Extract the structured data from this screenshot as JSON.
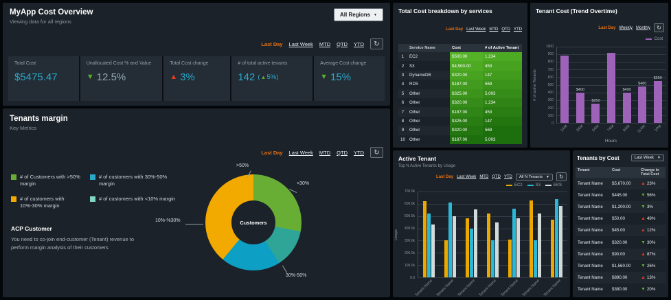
{
  "colors": {
    "teal": "#2aa8c9",
    "muted": "#93a9b3",
    "green": "#55b02a",
    "red": "#df3a1e",
    "orange": "#ec7211",
    "purple": "#9d63b8",
    "table_green_bright": "#54b226",
    "table_green_dark": "#1d6e0d",
    "bar_yellow": "#eaa800",
    "bar_teal": "#2bb7d6",
    "bar_gray": "#d3dada"
  },
  "overview": {
    "title": "MyApp Cost Overview",
    "subtitle": "Viewing data for all regions",
    "region_dropdown": "All Regions",
    "filters": [
      "Last Day",
      "Last Week",
      "MTD",
      "QTD",
      "YTD"
    ],
    "kpis": [
      {
        "label": "Total Cost",
        "value": "$5475.47"
      },
      {
        "label": "Unallocated Cost % and Value",
        "arrow": "down",
        "arrow_color": "green",
        "value": "12.5%"
      },
      {
        "label": "Total Cost change",
        "arrow": "up",
        "arrow_color": "red",
        "value": "3%"
      },
      {
        "label": "# of total active tenants",
        "value": "142",
        "change_pre": "(",
        "change_arrow": "up",
        "change_post": "5%)"
      },
      {
        "label": "Average Cost change",
        "arrow": "down",
        "arrow_color": "green",
        "value": "15%"
      }
    ]
  },
  "margin": {
    "title": "Tenants margin",
    "subtitle": "Key Metrics",
    "filters": [
      "Last Day",
      "Last Week",
      "MTD",
      "QTD",
      "YTD"
    ],
    "legend": [
      {
        "color": "#69ae34",
        "label": "# of Customers with >50% margin"
      },
      {
        "color": "#2aa8c9",
        "label": "# of customers with 30%-50% margin"
      },
      {
        "color": "#f2a900",
        "label": "# of customers with 10%-30% margin"
      },
      {
        "color": "#7fd6c2",
        "label": "# of customers with <10% margin"
      }
    ],
    "acp_title": "ACP Customer",
    "acp_text": "You need to co-join end-customer (Tenant) revenue to perform margin analysis of their customers",
    "chart_data": {
      "type": "pie",
      "center_label": "Customers",
      "segments": [
        {
          "label": ">50%",
          "value": 28,
          "color": "#69ae34"
        },
        {
          "label": "<30%",
          "value": 13,
          "color": "#2ea597"
        },
        {
          "label": "30%-50%",
          "value": 20,
          "color": "#0e9fc4"
        },
        {
          "label": "10%-%30%",
          "value": 39,
          "color": "#f2a900"
        }
      ]
    }
  },
  "breakdown": {
    "title": "Total Cost breakdown by services",
    "filters": [
      "Last Day",
      "Last Week",
      "MTD",
      "QTD",
      "YTD"
    ],
    "chart_data": {
      "type": "table",
      "columns": [
        "Service Name",
        "Cost",
        "# of Active Tenant"
      ],
      "rows": [
        {
          "rank": "1",
          "service": "EC2",
          "cost": "$500.00",
          "tenants": "1,234"
        },
        {
          "rank": "2",
          "service": "S3",
          "cost": "$4,500.00",
          "tenants": "453"
        },
        {
          "rank": "3",
          "service": "DynamoDB",
          "cost": "$320.00",
          "tenants": "147"
        },
        {
          "rank": "4",
          "service": "RDS",
          "cost": "$187.00",
          "tenants": "569"
        },
        {
          "rank": "5",
          "service": "Other",
          "cost": "$325.00",
          "tenants": "5,003"
        },
        {
          "rank": "6",
          "service": "Other",
          "cost": "$320.00",
          "tenants": "1,234"
        },
        {
          "rank": "7",
          "service": "Other",
          "cost": "$187.00",
          "tenants": "453"
        },
        {
          "rank": "8",
          "service": "Other",
          "cost": "$325.00",
          "tenants": "147"
        },
        {
          "rank": "9",
          "service": "Other",
          "cost": "$320.00",
          "tenants": "569"
        },
        {
          "rank": "10",
          "service": "Other",
          "cost": "$187.00",
          "tenants": "5,003"
        }
      ]
    }
  },
  "trend": {
    "title": "Tenant Cost (Trend Overtime)",
    "filters": [
      "Last Day",
      "Weekly",
      "Monthly"
    ],
    "legend_label": "Cost",
    "chart_data": {
      "type": "bar",
      "ylabel": "# of active Tenants",
      "xlabel": "Hours",
      "ylim": [
        0,
        1000
      ],
      "bar_color": "#9d63b8",
      "yticks": [
        {
          "t": "1000",
          "v": 1000
        },
        {
          "t": "900",
          "v": 900
        },
        {
          "t": "800",
          "v": 800
        },
        {
          "t": "700",
          "v": 700
        },
        {
          "t": "600",
          "v": 600
        },
        {
          "t": "500",
          "v": 500
        },
        {
          "t": "400",
          "v": 400
        },
        {
          "t": "300",
          "v": 300
        },
        {
          "t": "200",
          "v": 200
        },
        {
          "t": "100",
          "v": 100
        },
        {
          "t": "0",
          "v": 0
        }
      ],
      "categories": [
        "1AM",
        "3AM",
        "5AM",
        "7AM",
        "9AM",
        "11AM",
        "1PM"
      ],
      "values": [
        880,
        400,
        250,
        920,
        400,
        480,
        550
      ],
      "bar_labels": [
        "",
        "$400",
        "$250",
        "",
        "$400",
        "$480",
        "$550"
      ]
    }
  },
  "active": {
    "title": "Active Tenant",
    "subtitle": "Top N Active Tenants by Usage",
    "filters": [
      "Last Day",
      "Last Week",
      "MTD",
      "QTD",
      "YTD"
    ],
    "dropdown": "All N Tenants",
    "chart_data": {
      "type": "bar",
      "ylabel": "Usage",
      "xlabel": "",
      "ylim": [
        0,
        700
      ],
      "unit": "k",
      "yticks": [
        {
          "t": "700.0k",
          "v": 700
        },
        {
          "t": "600.0k",
          "v": 600
        },
        {
          "t": "500.0k",
          "v": 500
        },
        {
          "t": "400.0k",
          "v": 400
        },
        {
          "t": "300.0k",
          "v": 300
        },
        {
          "t": "200.0k",
          "v": 200
        },
        {
          "t": "100.0k",
          "v": 100
        },
        {
          "t": "0.0",
          "v": 0
        }
      ],
      "categories": [
        "Tenant Name",
        "Tenant Name",
        "Tenant Name",
        "Tenant Name",
        "Tenant Name",
        "Tenant Name",
        "Tenant Name"
      ],
      "series": [
        {
          "name": "EC2",
          "color": "#eaa800",
          "values": [
            620,
            300,
            480,
            520,
            310,
            630,
            470
          ]
        },
        {
          "name": "S3",
          "color": "#2bb7d6",
          "values": [
            520,
            610,
            400,
            300,
            560,
            300,
            640
          ]
        },
        {
          "name": "EKS",
          "color": "#d3dada",
          "values": [
            430,
            500,
            555,
            450,
            480,
            520,
            580
          ]
        }
      ]
    }
  },
  "bycost": {
    "title": "Tenants by Cost",
    "dropdown": "Last Week",
    "chart_data": {
      "type": "table",
      "columns": [
        "Tenant",
        "Cost",
        "Change in Total Cost"
      ],
      "rows": [
        {
          "tenant": "Tenant Name",
          "cost": "$5,670.00",
          "dir": "up",
          "pct": "23%"
        },
        {
          "tenant": "Tenant Name",
          "cost": "$445.00",
          "dir": "down",
          "pct": "56%"
        },
        {
          "tenant": "Tenant Name",
          "cost": "$1,200.00",
          "dir": "down",
          "pct": "3%"
        },
        {
          "tenant": "Tenant Name",
          "cost": "$50.00",
          "dir": "up",
          "pct": "49%"
        },
        {
          "tenant": "Tenant Name",
          "cost": "$45.00",
          "dir": "up",
          "pct": "12%"
        },
        {
          "tenant": "Tenant Name",
          "cost": "$320.00",
          "dir": "down",
          "pct": "30%"
        },
        {
          "tenant": "Tenant Name",
          "cost": "$90.00",
          "dir": "up",
          "pct": "87%"
        },
        {
          "tenant": "Tenant Name",
          "cost": "$1,560.00",
          "dir": "down",
          "pct": "26%"
        },
        {
          "tenant": "Tenant Name",
          "cost": "$890.00",
          "dir": "up",
          "pct": "13%"
        },
        {
          "tenant": "Tenant Name",
          "cost": "$380.00",
          "dir": "down",
          "pct": "20%"
        }
      ]
    }
  }
}
